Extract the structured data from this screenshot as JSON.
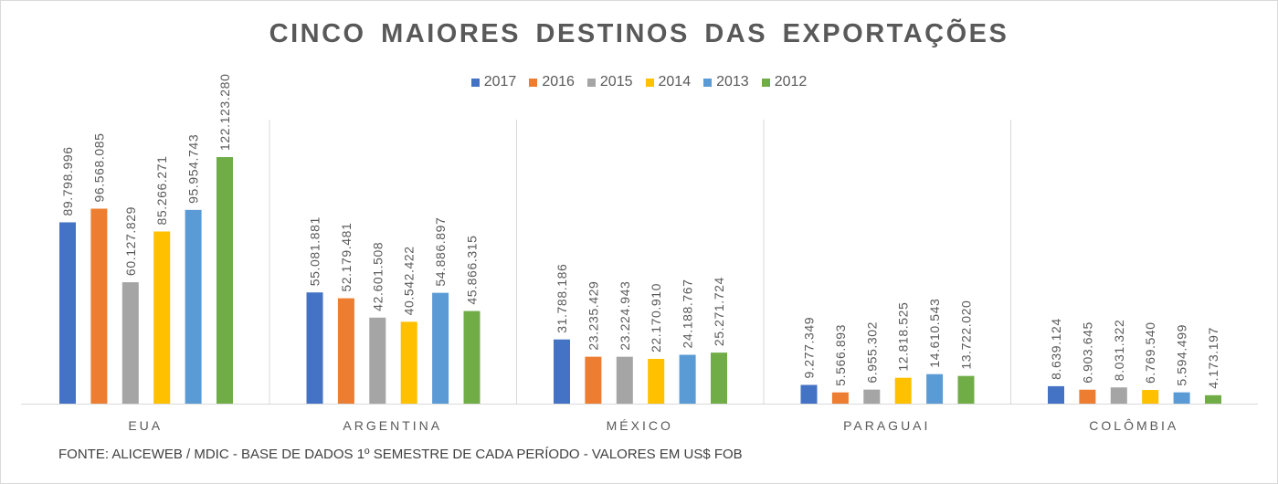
{
  "chart_data": {
    "type": "bar",
    "title": "CINCO MAIORES DESTINOS DAS EXPORTAÇÕES",
    "categories": [
      "EUA",
      "ARGENTINA",
      "MÉXICO",
      "PARAGUAI",
      "COLÔMBIA"
    ],
    "series": [
      {
        "name": "2017",
        "color": "#4472C4",
        "values": [
          89798996,
          55081881,
          31788186,
          9277349,
          8639124
        ],
        "labels": [
          "89.798.996",
          "55.081.881",
          "31.788.186",
          "9.277.349",
          "8.639.124"
        ]
      },
      {
        "name": "2016",
        "color": "#ED7D31",
        "values": [
          96568085,
          52179481,
          23235429,
          5566893,
          6903645
        ],
        "labels": [
          "96.568.085",
          "52.179.481",
          "23.235.429",
          "5.566.893",
          "6.903.645"
        ]
      },
      {
        "name": "2015",
        "color": "#A5A5A5",
        "values": [
          60127829,
          42601508,
          23224943,
          6955302,
          8031322
        ],
        "labels": [
          "60.127.829",
          "42.601.508",
          "23.224.943",
          "6.955.302",
          "8.031.322"
        ]
      },
      {
        "name": "2014",
        "color": "#FFC000",
        "values": [
          85266271,
          40542422,
          22170910,
          12818525,
          6769540
        ],
        "labels": [
          "85.266.271",
          "40.542.422",
          "22.170.910",
          "12.818.525",
          "6.769.540"
        ]
      },
      {
        "name": "2013",
        "color": "#5B9BD5",
        "values": [
          95954743,
          54886897,
          24188767,
          14610543,
          5594499
        ],
        "labels": [
          "95.954.743",
          "54.886.897",
          "24.188.767",
          "14.610.543",
          "5.594.499"
        ]
      },
      {
        "name": "2012",
        "color": "#70AD47",
        "values": [
          122123280,
          45866315,
          25271724,
          13722020,
          4173197
        ],
        "labels": [
          "122.123.280",
          "45.866.315",
          "25.271.724",
          "13.722.020",
          "4.173.197"
        ]
      }
    ],
    "ylim": [
      0,
      122123280
    ],
    "grid": false,
    "legend_position": "top",
    "footnote": "FONTE: ALICEWEB / MDIC - BASE DE DADOS 1º SEMESTRE DE CADA PERÍODO - VALORES EM US$ FOB"
  }
}
